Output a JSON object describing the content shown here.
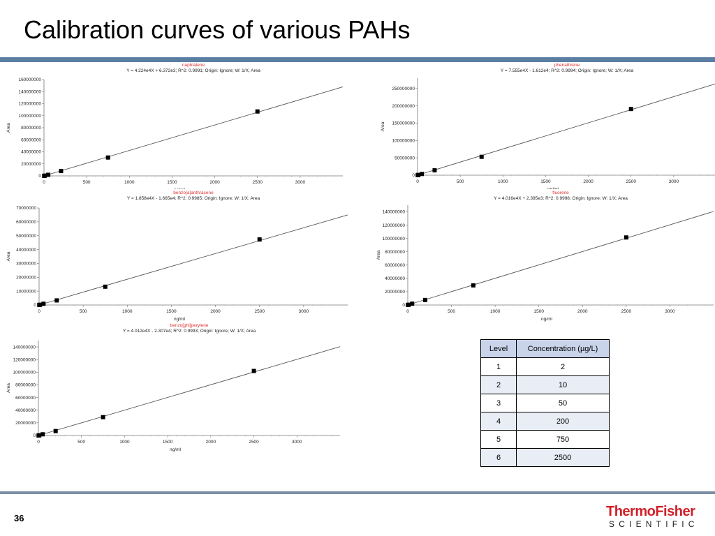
{
  "slide": {
    "title": "Calibration curves of various PAHs",
    "page_number": "36"
  },
  "logo": {
    "line1": "ThermoFisher",
    "line2": "SCIENTIFIC"
  },
  "chart_data": [
    {
      "type": "scatter",
      "name": "naphtalene",
      "equation": "Y = 4.224e4X + 6.372e3; R^2: 0.9991; Origin: Ignore; W: 1/X; Area",
      "xlabel": "ng/ml",
      "ylabel": "Area",
      "xlim": [
        0,
        3500
      ],
      "ylim": [
        0,
        160000000
      ],
      "xticks": [
        0,
        500,
        1000,
        1500,
        2000,
        2500,
        3000
      ],
      "yticks": [
        0,
        20000000,
        40000000,
        60000000,
        80000000,
        100000000,
        120000000,
        140000000,
        160000000
      ],
      "slope": 42240,
      "intercept": 6372,
      "points": [
        [
          2,
          80000
        ],
        [
          10,
          420000
        ],
        [
          50,
          1800000
        ],
        [
          200,
          8000000
        ],
        [
          750,
          30500000
        ],
        [
          2500,
          107000000
        ]
      ]
    },
    {
      "type": "scatter",
      "name": "phenathrene",
      "equation": "Y = 7.555e4X - 1.612e4; R^2: 0.9994; Origin: Ignore; W: 1/X; Area",
      "xlabel": "ng/ml",
      "ylabel": "Area",
      "xlim": [
        0,
        3500
      ],
      "ylim": [
        0,
        280000000
      ],
      "xticks": [
        0,
        500,
        1000,
        1500,
        2000,
        2500,
        3000
      ],
      "yticks": [
        0,
        50000000,
        100000000,
        150000000,
        200000000,
        250000000
      ],
      "slope": 75550,
      "intercept": -16120,
      "points": [
        [
          2,
          150000
        ],
        [
          10,
          750000
        ],
        [
          50,
          3500000
        ],
        [
          200,
          14000000
        ],
        [
          750,
          53000000
        ],
        [
          2500,
          191000000
        ]
      ]
    },
    {
      "type": "scatter",
      "name": "benzo[a]anthracene",
      "equation": "Y = 1.858e4X - 1.665e4; R^2: 0.9985; Origin: Ignore; W: 1/X; Area",
      "xlabel": "ng/ml",
      "ylabel": "Area",
      "xlim": [
        0,
        3500
      ],
      "ylim": [
        0,
        70000000
      ],
      "xticks": [
        0,
        500,
        1000,
        1500,
        2000,
        2500,
        3000
      ],
      "yticks": [
        0,
        10000000,
        20000000,
        30000000,
        40000000,
        50000000,
        60000000,
        70000000
      ],
      "slope": 18580,
      "intercept": -16650,
      "points": [
        [
          2,
          40000
        ],
        [
          10,
          180000
        ],
        [
          50,
          900000
        ],
        [
          200,
          3300000
        ],
        [
          750,
          13200000
        ],
        [
          2500,
          47300000
        ]
      ]
    },
    {
      "type": "scatter",
      "name": "fluorene",
      "equation": "Y = 4.016e4X + 2.395e3; R^2: 0.9998; Origin: Ignore; W: 1/X; Area",
      "xlabel": "ng/ml",
      "ylabel": "Area",
      "xlim": [
        0,
        3500
      ],
      "ylim": [
        0,
        150000000
      ],
      "xticks": [
        0,
        500,
        1000,
        1500,
        2000,
        2500,
        3000
      ],
      "yticks": [
        0,
        20000000,
        40000000,
        60000000,
        80000000,
        100000000,
        120000000,
        140000000
      ],
      "slope": 40160,
      "intercept": 2395,
      "points": [
        [
          2,
          80000
        ],
        [
          10,
          400000
        ],
        [
          50,
          2000000
        ],
        [
          200,
          7500000
        ],
        [
          750,
          29500000
        ],
        [
          2500,
          101500000
        ]
      ]
    },
    {
      "type": "scatter",
      "name": "benzo[ghi]perylene",
      "equation": "Y = 4.012e4X - 2.307e4; R^2: 0.9993; Origin: Ignore; W: 1/X; Area",
      "xlabel": "ng/ml",
      "ylabel": "Area",
      "xlim": [
        0,
        3500
      ],
      "ylim": [
        0,
        150000000
      ],
      "xticks": [
        0,
        500,
        1000,
        1500,
        2000,
        2500,
        3000
      ],
      "yticks": [
        0,
        20000000,
        40000000,
        60000000,
        80000000,
        100000000,
        120000000,
        140000000
      ],
      "slope": 40120,
      "intercept": -23070,
      "points": [
        [
          2,
          70000
        ],
        [
          10,
          380000
        ],
        [
          50,
          1900000
        ],
        [
          200,
          7000000
        ],
        [
          750,
          29000000
        ],
        [
          2500,
          102000000
        ]
      ]
    }
  ],
  "levels_table": {
    "headers": [
      "Level",
      "Concentration (µg/L)"
    ],
    "rows": [
      [
        "1",
        "2"
      ],
      [
        "2",
        "10"
      ],
      [
        "3",
        "50"
      ],
      [
        "4",
        "200"
      ],
      [
        "5",
        "750"
      ],
      [
        "6",
        "2500"
      ]
    ]
  }
}
